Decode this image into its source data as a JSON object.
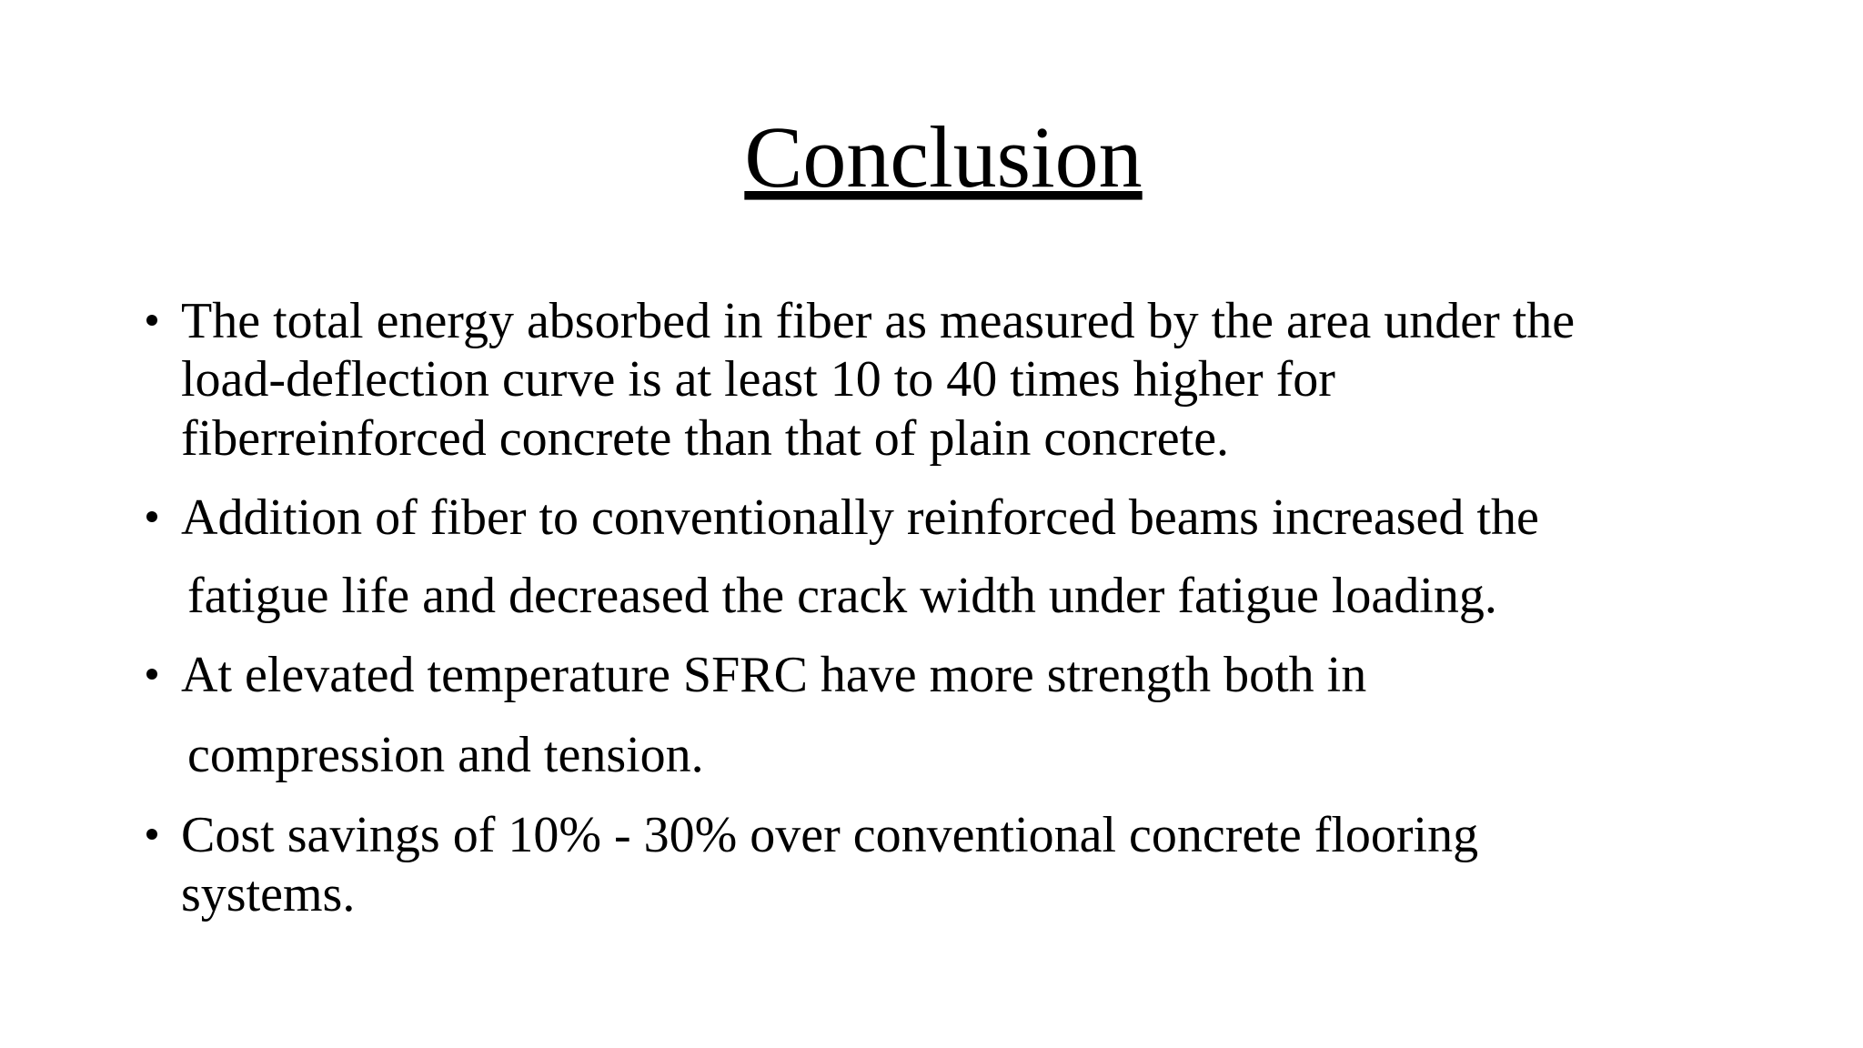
{
  "title": "Conclusion",
  "bullets": [
    {
      "lines": [
        "The total energy absorbed in fiber as measured by the area under the",
        "load-deflection curve is at least 10 to 40 times higher for",
        "fiberreinforced concrete than that of plain concrete."
      ]
    },
    {
      "lines": [
        "Addition of fiber to conventionally reinforced beams increased the",
        "fatigue life and decreased the crack width under fatigue loading."
      ]
    },
    {
      "lines": [
        "At elevated temperature SFRC have more strength both in",
        "compression and tension."
      ]
    },
    {
      "lines": [
        "Cost savings of 10% - 30% over conventional concrete flooring",
        "systems."
      ]
    }
  ]
}
